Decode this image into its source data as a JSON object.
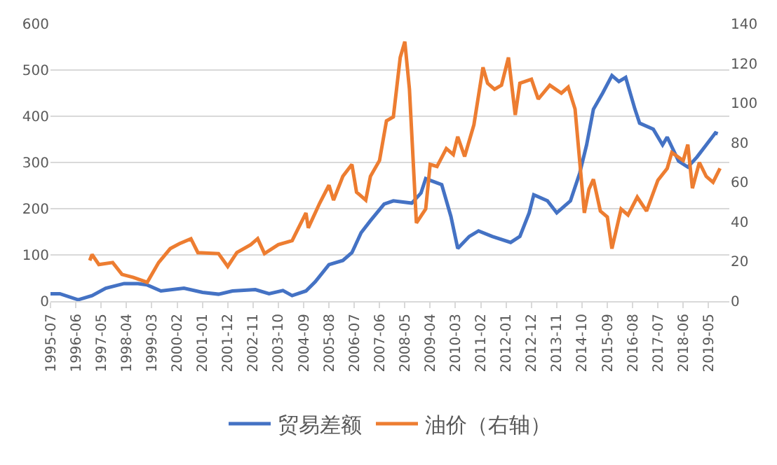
{
  "chart_data": {
    "type": "line",
    "legend": "bottom",
    "grid": "y",
    "marker": "none",
    "line_style": "solid",
    "xlim": [
      "1995-07",
      "2020-02"
    ],
    "xticks": [
      "1995-07",
      "1996-06",
      "1997-05",
      "1998-04",
      "1999-03",
      "2000-02",
      "2001-01",
      "2001-12",
      "2002-11",
      "2003-10",
      "2004-09",
      "2005-08",
      "2006-07",
      "2007-06",
      "2008-05",
      "2009-04",
      "2010-03",
      "2011-02",
      "2012-01",
      "2012-12",
      "2013-11",
      "2014-10",
      "2015-09",
      "2016-08",
      "2017-07",
      "2018-06",
      "2019-05"
    ],
    "ylim": [
      0,
      600
    ],
    "yticks": [
      0,
      100,
      200,
      300,
      400,
      500,
      600
    ],
    "y2lim": [
      0,
      140
    ],
    "y2ticks": [
      0,
      20,
      40,
      60,
      80,
      100,
      120,
      140
    ],
    "series": [
      {
        "name": "贸易差额",
        "color": "#4472c4",
        "x": [
          "1995-07",
          "1995-11",
          "1996-07",
          "1997-01",
          "1997-07",
          "1998-03",
          "1998-09",
          "1999-01",
          "1999-07",
          "2000-05",
          "2001-01",
          "2001-08",
          "2002-02",
          "2002-12",
          "2003-06",
          "2003-12",
          "2004-04",
          "2004-10",
          "2005-02",
          "2005-08",
          "2006-02",
          "2006-06",
          "2006-10",
          "2007-02",
          "2007-08",
          "2007-12",
          "2008-08",
          "2008-12",
          "2009-02",
          "2009-09",
          "2010-01",
          "2010-04",
          "2010-09",
          "2011-01",
          "2011-07",
          "2012-03",
          "2012-07",
          "2012-11",
          "2013-01",
          "2013-07",
          "2013-11",
          "2014-05",
          "2014-09",
          "2014-12",
          "2015-03",
          "2015-07",
          "2015-11",
          "2016-02",
          "2016-05",
          "2016-09",
          "2016-11",
          "2017-05",
          "2017-09",
          "2017-11",
          "2018-04",
          "2018-08",
          "2018-12",
          "2019-04",
          "2019-08",
          "2019-09"
        ],
        "values": [
          16,
          16,
          3,
          12,
          28,
          38,
          38,
          35,
          22,
          28,
          19,
          15,
          22,
          25,
          16,
          23,
          12,
          22,
          42,
          79,
          88,
          105,
          148,
          174,
          210,
          217,
          212,
          234,
          265,
          252,
          183,
          114,
          140,
          152,
          140,
          127,
          140,
          191,
          230,
          217,
          191,
          217,
          277,
          338,
          415,
          450,
          488,
          475,
          484,
          415,
          385,
          372,
          338,
          355,
          303,
          290,
          312,
          338,
          364,
          362
        ]
      },
      {
        "name": "油价（右轴）",
        "color": "#ed7d31",
        "axis": "y2",
        "x": [
          "1996-12",
          "1997-01",
          "1997-04",
          "1997-10",
          "1998-02",
          "1998-07",
          "1999-01",
          "1999-06",
          "1999-11",
          "2000-03",
          "2000-08",
          "2000-11",
          "2001-08",
          "2001-12",
          "2002-04",
          "2002-10",
          "2003-01",
          "2003-04",
          "2003-10",
          "2004-04",
          "2004-10",
          "2004-11",
          "2005-04",
          "2005-08",
          "2005-10",
          "2006-02",
          "2006-06",
          "2006-08",
          "2006-12",
          "2007-02",
          "2007-06",
          "2007-09",
          "2007-12",
          "2008-03",
          "2008-05",
          "2008-07",
          "2008-10",
          "2009-02",
          "2009-04",
          "2009-07",
          "2009-11",
          "2010-02",
          "2010-04",
          "2010-07",
          "2010-11",
          "2011-03",
          "2011-05",
          "2011-08",
          "2011-11",
          "2012-02",
          "2012-05",
          "2012-07",
          "2012-12",
          "2013-03",
          "2013-08",
          "2014-01",
          "2014-04",
          "2014-07",
          "2014-11",
          "2015-01",
          "2015-03",
          "2015-06",
          "2015-09",
          "2015-11",
          "2016-03",
          "2016-06",
          "2016-10",
          "2017-02",
          "2017-07",
          "2017-11",
          "2018-01",
          "2018-06",
          "2018-08",
          "2018-10",
          "2019-01",
          "2019-04",
          "2019-07",
          "2019-10"
        ],
        "values": [
          20.5,
          23.5,
          18.5,
          19.5,
          13.5,
          12,
          9.5,
          19.5,
          26.5,
          29,
          31.5,
          24.5,
          24,
          17.5,
          24.5,
          28.5,
          31.5,
          24,
          28.5,
          30.5,
          44.5,
          37,
          49.5,
          58.5,
          51,
          63,
          69,
          55,
          51,
          63,
          71,
          91,
          93,
          123,
          131,
          107,
          39.5,
          46.5,
          69,
          68,
          77,
          74,
          83,
          73,
          89,
          118,
          110,
          107,
          109,
          123,
          94,
          110,
          112,
          102,
          109,
          105,
          108,
          97,
          44.5,
          56.5,
          61.5,
          45.5,
          42.5,
          26.5,
          46.5,
          43.5,
          52.5,
          45.5,
          61,
          67,
          75,
          71,
          79,
          57,
          70,
          63,
          60,
          67
        ]
      }
    ]
  }
}
